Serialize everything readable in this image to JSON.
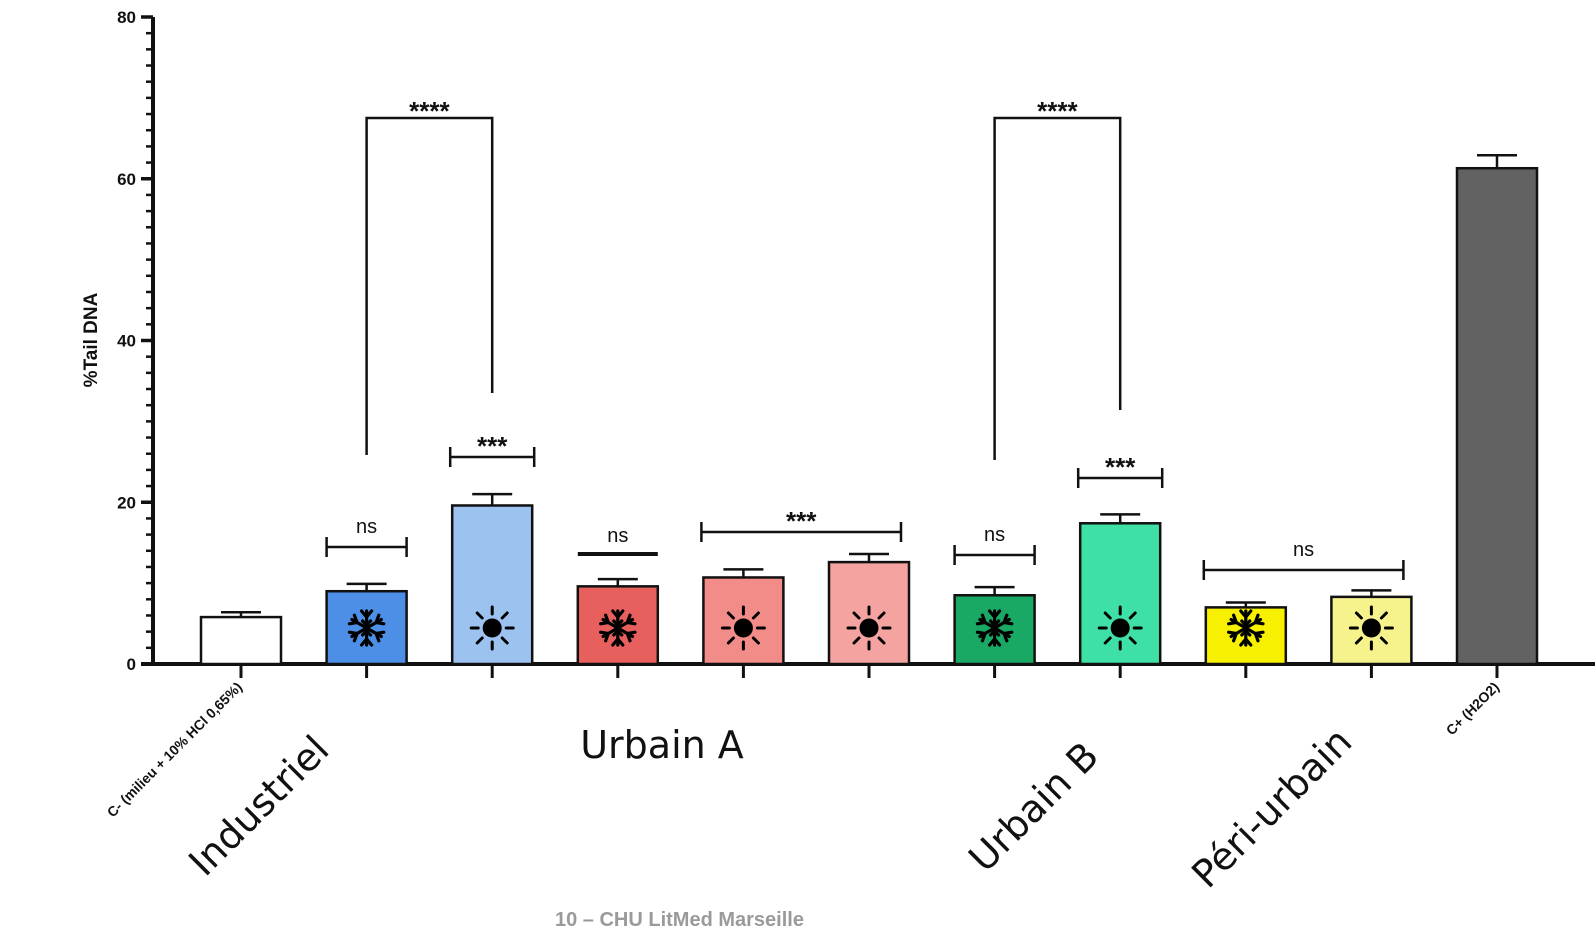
{
  "chart_data": {
    "type": "bar",
    "ylabel": "%Tail DNA",
    "xlabel": "",
    "ylim": [
      0,
      80
    ],
    "yticks": [
      0,
      20,
      40,
      60,
      80
    ],
    "grid": false,
    "legend": "none",
    "category_labels": [
      "C- (milieu + 10% HCl 0,65%)",
      "C+ (H2O2)"
    ],
    "group_labels": [
      "Industriel",
      "Urbain A",
      "Urbain B",
      "Péri-urbain"
    ],
    "bars": [
      {
        "value": 5.8,
        "error": 0.6,
        "color": "#ffffff",
        "icon": "none"
      },
      {
        "value": 9.0,
        "error": 0.9,
        "color": "#4d8fe6",
        "icon": "snowflake-icon"
      },
      {
        "value": 19.6,
        "error": 1.4,
        "color": "#9cc2f0",
        "icon": "sun-icon"
      },
      {
        "value": 9.6,
        "error": 0.9,
        "color": "#e8605e",
        "icon": "snowflake-icon"
      },
      {
        "value": 10.7,
        "error": 1.0,
        "color": "#f18c89",
        "icon": "sun-icon"
      },
      {
        "value": 12.6,
        "error": 1.0,
        "color": "#f4a3a1",
        "icon": "sun-icon"
      },
      {
        "value": 8.5,
        "error": 1.0,
        "color": "#1aa865",
        "icon": "snowflake-icon"
      },
      {
        "value": 17.4,
        "error": 1.1,
        "color": "#3ee0a6",
        "icon": "sun-icon"
      },
      {
        "value": 7.0,
        "error": 0.6,
        "color": "#f7f000",
        "icon": "snowflake-icon"
      },
      {
        "value": 8.3,
        "error": 0.8,
        "color": "#f6f28c",
        "icon": "sun-icon"
      },
      {
        "value": 61.3,
        "error": 1.6,
        "color": "#626262",
        "icon": "none"
      }
    ],
    "annotations": [
      {
        "text": "****",
        "from": 1,
        "to": 2
      },
      {
        "text": "***",
        "from": 2,
        "to": 2
      },
      {
        "text": "ns",
        "from": 1,
        "to": 1
      },
      {
        "text": "ns",
        "from": 3,
        "to": 3
      },
      {
        "text": "***",
        "from": 4,
        "to": 5
      },
      {
        "text": "****",
        "from": 6,
        "to": 7
      },
      {
        "text": "ns",
        "from": 6,
        "to": 6
      },
      {
        "text": "***",
        "from": 7,
        "to": 7
      },
      {
        "text": "ns",
        "from": 8,
        "to": 9
      }
    ]
  },
  "footer_text": "10 – CHU LitMed Marseille"
}
